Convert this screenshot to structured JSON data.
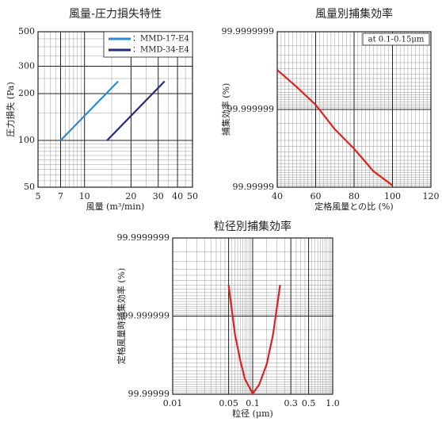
{
  "chart_data": [
    {
      "type": "line",
      "title": "風量-圧力損失特性",
      "xlabel": "風量 (m³/min)",
      "ylabel": "圧力損失 (Pa)",
      "xscale": "log",
      "yscale": "log",
      "xlim": [
        5,
        50
      ],
      "xticks": [
        5,
        7,
        10,
        20,
        30,
        40,
        50
      ],
      "ylim": [
        50,
        500
      ],
      "yticks": [
        50,
        100,
        200,
        300,
        500
      ],
      "grid": true,
      "legend": "upper-right",
      "series": [
        {
          "name": "：MMD-17-E4",
          "color": "#2b8bd3",
          "x": [
            7,
            16.5
          ],
          "values": [
            100,
            240
          ]
        },
        {
          "name": "：MMD-34-E4",
          "color": "#232c7c",
          "x": [
            14,
            33
          ],
          "values": [
            100,
            240
          ]
        }
      ]
    },
    {
      "type": "line",
      "title": "風量別捕集効率",
      "xlabel": "定格風量との比 (%)",
      "ylabel": "捕集効率 (%)",
      "xscale": "linear",
      "yscale": "penetration-log",
      "xlim": [
        40,
        120
      ],
      "xticks": [
        40,
        60,
        80,
        100,
        120
      ],
      "ylim": [
        99.99999,
        99.9999999
      ],
      "yticks": [
        99.99999,
        99.999999,
        99.9999999
      ],
      "grid": true,
      "annotation": "at 0.1-0.15μm",
      "series": [
        {
          "color": "#e02020",
          "x": [
            40,
            50,
            60,
            70,
            80,
            90,
            100
          ],
          "values": [
            99.99999969,
            99.99999949,
            99.99999913,
            99.9999982,
            99.9999968,
            99.9999938,
            99.9999905
          ]
        }
      ]
    },
    {
      "type": "line",
      "title": "粒径別捕集効率",
      "xlabel": "粒径 (μm)",
      "ylabel": "定格風量時捕集効率 (%)",
      "xscale": "log",
      "yscale": "penetration-log",
      "xlim": [
        0.01,
        1
      ],
      "xticks": [
        0.01,
        0.05,
        0.1,
        0.3,
        0.5,
        {
          "value": 1,
          "label": "1.0"
        }
      ],
      "ylim": [
        99.99999,
        99.9999999
      ],
      "yticks": [
        99.99999,
        99.999999,
        99.9999999
      ],
      "grid": true,
      "series": [
        {
          "color": "#e02020",
          "x": [
            0.05,
            0.06,
            0.07,
            0.08,
            0.1,
            0.12,
            0.15,
            0.18,
            0.22
          ],
          "values": [
            99.9999996,
            99.9999983,
            99.9999963,
            99.9999936,
            99.9999902,
            99.9999924,
            99.9999959,
            99.9999983,
            99.9999996
          ]
        }
      ]
    }
  ]
}
